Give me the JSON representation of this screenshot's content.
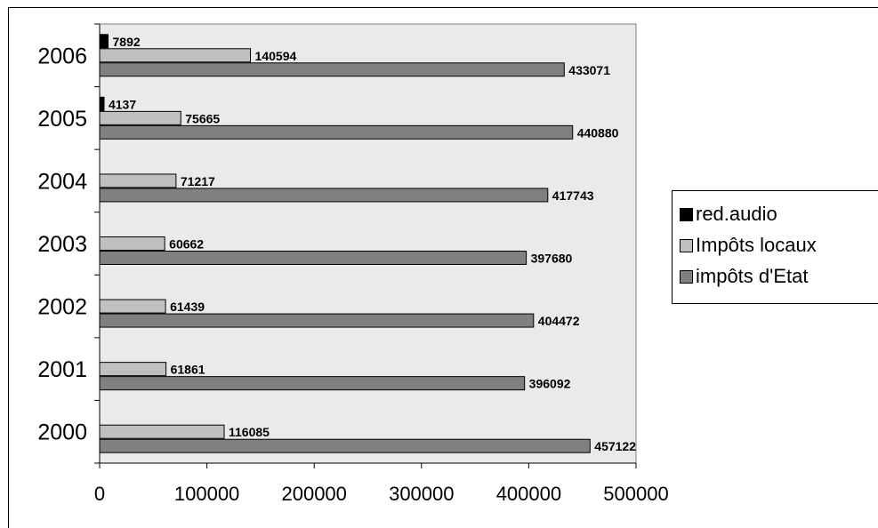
{
  "chart_data": {
    "type": "bar",
    "orientation": "horizontal",
    "categories": [
      "2000",
      "2001",
      "2002",
      "2003",
      "2004",
      "2005",
      "2006"
    ],
    "series": [
      {
        "name": "red.audio",
        "color": "#000000",
        "values": [
          null,
          null,
          null,
          null,
          null,
          4137,
          7892
        ]
      },
      {
        "name": "Impôts locaux",
        "color": "#c0c0c0",
        "values": [
          116085,
          61861,
          61439,
          60662,
          71217,
          75665,
          140594
        ]
      },
      {
        "name": "impôts d'Etat",
        "color": "#808080",
        "values": [
          457122,
          396092,
          404472,
          397680,
          417743,
          440880,
          433071
        ]
      }
    ],
    "xlim": [
      0,
      500000
    ],
    "xticks": [
      "0",
      "100000",
      "200000",
      "300000",
      "400000",
      "500000"
    ],
    "plot_background": "#eaeaea",
    "grid": false,
    "legend_position": "right"
  },
  "legend": {
    "items": [
      {
        "label": "red.audio",
        "color": "#000000"
      },
      {
        "label": "Impôts locaux",
        "color": "#c0c0c0"
      },
      {
        "label": "impôts d'Etat",
        "color": "#808080"
      }
    ]
  }
}
